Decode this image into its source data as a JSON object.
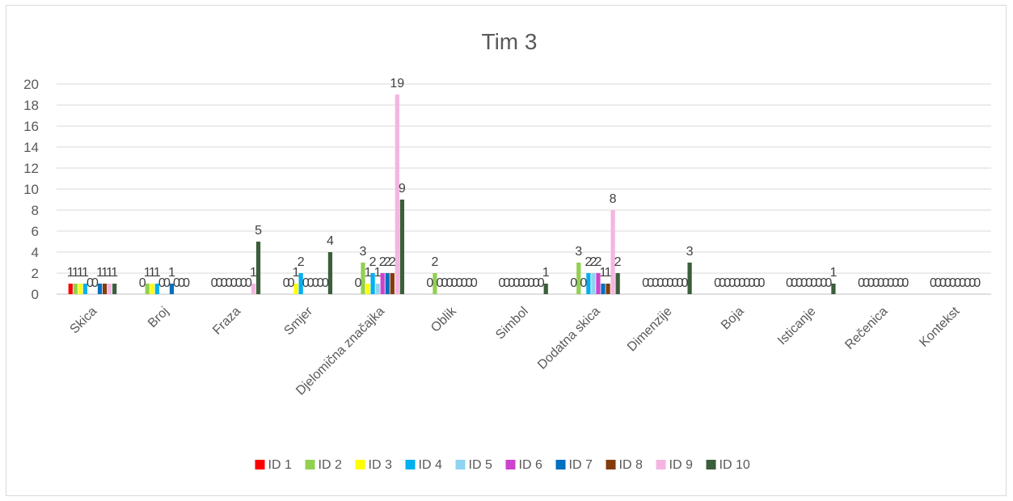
{
  "chart_data": {
    "type": "bar",
    "title": "Tim 3",
    "xlabel": "",
    "ylabel": "",
    "ylim": [
      0,
      20
    ],
    "yticks": [
      0,
      2,
      4,
      6,
      8,
      10,
      12,
      14,
      16,
      18,
      20
    ],
    "grid": true,
    "legend_position": "bottom",
    "categories": [
      "Skica",
      "Broj",
      "Fraza",
      "Smjer",
      "Djelomična značajka",
      "Oblik",
      "Simbol",
      "Dodatna skica",
      "Dimenzije",
      "Boja",
      "Isticanje",
      "Rečenica",
      "Kontekst"
    ],
    "series": [
      {
        "name": "ID 1",
        "color": "#ff0000",
        "values": [
          1,
          0,
          0,
          0,
          0,
          0,
          0,
          0,
          0,
          0,
          0,
          0,
          0
        ]
      },
      {
        "name": "ID 2",
        "color": "#92d050",
        "values": [
          1,
          1,
          0,
          0,
          3,
          2,
          0,
          3,
          0,
          0,
          0,
          0,
          0
        ]
      },
      {
        "name": "ID 3",
        "color": "#ffff00",
        "values": [
          1,
          1,
          0,
          1,
          1,
          0,
          0,
          0,
          0,
          0,
          0,
          0,
          0
        ]
      },
      {
        "name": "ID 4",
        "color": "#00b0f0",
        "values": [
          1,
          1,
          0,
          2,
          2,
          0,
          0,
          2,
          0,
          0,
          0,
          0,
          0
        ]
      },
      {
        "name": "ID 5",
        "color": "#8fd3f2",
        "values": [
          0,
          0,
          0,
          0,
          1,
          0,
          0,
          2,
          0,
          0,
          0,
          0,
          0
        ]
      },
      {
        "name": "ID 6",
        "color": "#cc44cc",
        "values": [
          0,
          0,
          0,
          0,
          2,
          0,
          0,
          2,
          0,
          0,
          0,
          0,
          0
        ]
      },
      {
        "name": "ID 7",
        "color": "#0070c0",
        "values": [
          1,
          1,
          0,
          0,
          2,
          0,
          0,
          1,
          0,
          0,
          0,
          0,
          0
        ]
      },
      {
        "name": "ID 8",
        "color": "#843c0c",
        "values": [
          1,
          0,
          0,
          0,
          2,
          0,
          0,
          1,
          0,
          0,
          0,
          0,
          0
        ]
      },
      {
        "name": "ID 9",
        "color": "#f4b6e0",
        "values": [
          1,
          0,
          1,
          0,
          19,
          0,
          0,
          8,
          0,
          0,
          0,
          0,
          0
        ]
      },
      {
        "name": "ID 10",
        "color": "#3b5e3b",
        "values": [
          1,
          0,
          5,
          4,
          9,
          0,
          1,
          2,
          3,
          0,
          1,
          0,
          0
        ]
      }
    ]
  }
}
